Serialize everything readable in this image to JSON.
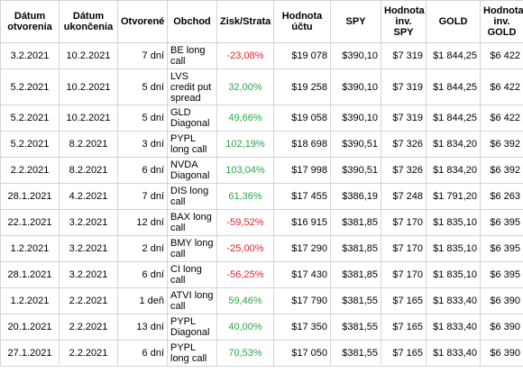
{
  "table": {
    "header": [
      "Dátum otvorenia",
      "Dátum ukončenia",
      "Otvorené",
      "Obchod",
      "Zisk/Strata",
      "Hodnota účtu",
      "SPY",
      "Hodnota inv. SPY",
      "GOLD",
      "Hodnota inv. GOLD"
    ],
    "rows": [
      [
        "3.2.2021",
        "10.2.2021",
        "7 dní",
        "BE long call",
        "-23,08%",
        "$19 078",
        "$390,10",
        "$7 319",
        "$1 844,25",
        "$6 422"
      ],
      [
        "5.2.2021",
        "10.2.2021",
        "5 dní",
        "LVS credit put spread",
        "32,00%",
        "$19 258",
        "$390,10",
        "$7 319",
        "$1 844,25",
        "$6 422"
      ],
      [
        "5.2.2021",
        "10.2.2021",
        "5 dní",
        "GLD Diagonal",
        "49,66%",
        "$19 058",
        "$390,10",
        "$7 319",
        "$1 844,25",
        "$6 422"
      ],
      [
        "5.2.2021",
        "8.2.2021",
        "3 dní",
        "PYPL long call",
        "102,19%",
        "$18 698",
        "$390,51",
        "$7 326",
        "$1 834,20",
        "$6 392"
      ],
      [
        "2.2.2021",
        "8.2.2021",
        "6 dní",
        "NVDA Diagonal",
        "103,04%",
        "$17 998",
        "$390,51",
        "$7 326",
        "$1 834,20",
        "$6 392"
      ],
      [
        "28.1.2021",
        "4.2.2021",
        "7 dní",
        "DIS long call",
        "61,36%",
        "$17 455",
        "$386,19",
        "$7 248",
        "$1 791,20",
        "$6 263"
      ],
      [
        "22.1.2021",
        "3.2.2021",
        "12 dní",
        "BAX long call",
        "-59,52%",
        "$16 915",
        "$381,85",
        "$7 170",
        "$1 835,10",
        "$6 395"
      ],
      [
        "1.2.2021",
        "3.2.2021",
        "2 dní",
        "BMY long call",
        "-25,00%",
        "$17 290",
        "$381,85",
        "$7 170",
        "$1 835,10",
        "$6 395"
      ],
      [
        "28.1.2021",
        "3.2.2021",
        "6 dní",
        "CI long call",
        "-56,25%",
        "$17 430",
        "$381,85",
        "$7 170",
        "$1 835,10",
        "$6 395"
      ],
      [
        "1.2.2021",
        "2.2.2021",
        "1 deň",
        "ATVI long call",
        "59,46%",
        "$17 790",
        "$381,55",
        "$7 165",
        "$1 833,40",
        "$6 390"
      ],
      [
        "20.1.2021",
        "2.2.2021",
        "13 dní",
        "PYPL Diagonal",
        "40,00%",
        "$17 350",
        "$381,55",
        "$7 165",
        "$1 833,40",
        "$6 390"
      ],
      [
        "27.1.2021",
        "2.2.2021",
        "6 dní",
        "PYPL long call",
        "70,53%",
        "$17 050",
        "$381,55",
        "$7 165",
        "$1 833,40",
        "$6 390"
      ]
    ]
  }
}
